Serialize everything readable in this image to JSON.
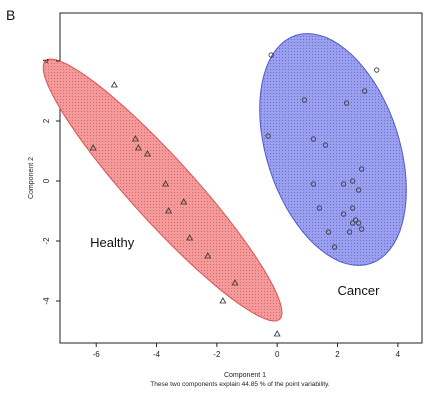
{
  "panel_label": "B",
  "caption": "These two components explain 44.85 % of the point variability.",
  "chart_data": {
    "type": "scatter",
    "title": "",
    "xlabel": "Component 1",
    "ylabel": "Component 2",
    "xlim": [
      -7.2,
      4.8
    ],
    "ylim": [
      -5.4,
      5.6
    ],
    "xticks": [
      -6,
      -4,
      -2,
      0,
      2,
      4
    ],
    "xtick_labels": [
      "-6",
      "-4",
      "-2",
      "0",
      "2",
      "4"
    ],
    "yticks": [
      -4,
      -2,
      0,
      2,
      4
    ],
    "ytick_labels": [
      "-4",
      "-2",
      "0",
      "2",
      "4"
    ],
    "grid": false,
    "legend": "none",
    "series": [
      {
        "name": "Healthy",
        "marker": "triangle",
        "color": "#333333",
        "ellipse": {
          "fill": "#f08f8f",
          "stroke": "#e05050",
          "cx": -3.8,
          "cy": -0.3,
          "semi_major": 5.8,
          "semi_minor": 1.05,
          "angle_deg": -48
        },
        "x": [
          -5.4,
          -6.1,
          -4.7,
          -4.6,
          -4.3,
          -3.7,
          -3.1,
          -3.6,
          -2.9,
          -2.3,
          -1.4,
          -1.8,
          0.0
        ],
        "y": [
          3.2,
          1.1,
          1.4,
          1.1,
          0.9,
          -0.1,
          -0.7,
          -1.0,
          -1.9,
          -2.5,
          -3.4,
          -4.0,
          -5.1
        ]
      },
      {
        "name": "Cancer",
        "marker": "circle",
        "color": "#333333",
        "ellipse": {
          "fill": "#9098ea",
          "stroke": "#5058d0",
          "cx": 1.85,
          "cy": 1.05,
          "semi_major": 4.0,
          "semi_minor": 2.2,
          "angle_deg": -72
        },
        "x": [
          -0.2,
          -0.3,
          1.2,
          2.9,
          3.3,
          0.9,
          2.3,
          2.8,
          2.5,
          2.2,
          1.2,
          2.7,
          1.4,
          2.2,
          2.6,
          1.7,
          2.5,
          2.4,
          2.8,
          1.9,
          2.5,
          2.7,
          1.6
        ],
        "y": [
          4.2,
          1.5,
          1.4,
          3.0,
          3.7,
          2.7,
          2.6,
          0.4,
          0.0,
          -0.1,
          -0.1,
          -0.3,
          -0.9,
          -1.1,
          -1.3,
          -1.7,
          -1.4,
          -1.7,
          -1.6,
          -2.2,
          -0.9,
          -1.4,
          1.2
        ]
      }
    ],
    "group_labels": [
      {
        "text": "Healthy",
        "x": -6.2,
        "y": -2.2
      },
      {
        "text": "Cancer",
        "x": 2.0,
        "y": -3.8
      }
    ]
  }
}
